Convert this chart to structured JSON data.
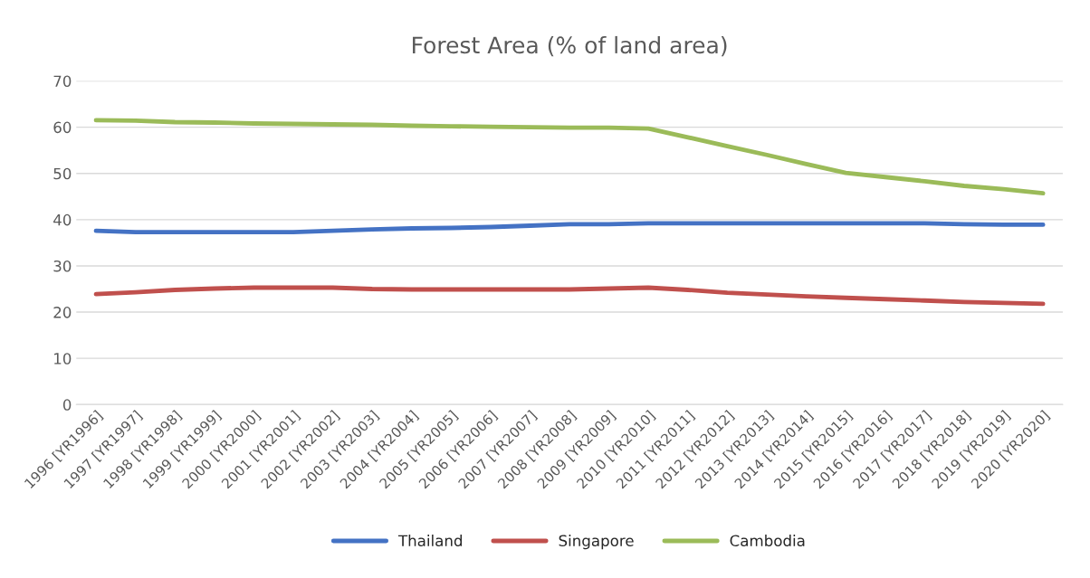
{
  "chart_data": {
    "type": "line",
    "title": "Forest Area (% of land area)",
    "categories": [
      "1996 [YR1996]",
      "1997 [YR1997]",
      "1998 [YR1998]",
      "1999 [YR1999]",
      "2000 [YR2000]",
      "2001 [YR2001]",
      "2002 [YR2002]",
      "2003 [YR2003]",
      "2004 [YR2004]",
      "2005 [YR2005]",
      "2006 [YR2006]",
      "2007 [YR2007]",
      "2008 [YR2008]",
      "2009 [YR2009]",
      "2010 [YR2010]",
      "2011 [YR2011]",
      "2012 [YR2012]",
      "2013 [YR2013]",
      "2014 [YR2014]",
      "2015 [YR2015]",
      "2016 [YR2016]",
      "2017 [YR2017]",
      "2018 [YR2018]",
      "2019 [YR2019]",
      "2020 [YR2020]"
    ],
    "series": [
      {
        "name": "Thailand",
        "color": "#4472c4",
        "values": [
          37.6,
          37.3,
          37.3,
          37.3,
          37.3,
          37.3,
          37.6,
          37.9,
          38.1,
          38.2,
          38.4,
          38.7,
          39.0,
          39.0,
          39.2,
          39.2,
          39.2,
          39.2,
          39.2,
          39.2,
          39.2,
          39.2,
          39.0,
          38.9,
          38.9
        ]
      },
      {
        "name": "Singapore",
        "color": "#c0504d",
        "values": [
          23.9,
          24.3,
          24.8,
          25.1,
          25.3,
          25.3,
          25.3,
          25.0,
          24.9,
          24.9,
          24.9,
          24.9,
          24.9,
          25.1,
          25.3,
          24.8,
          24.2,
          23.8,
          23.4,
          23.1,
          22.8,
          22.5,
          22.2,
          22.0,
          21.8
        ]
      },
      {
        "name": "Cambodia",
        "color": "#9bbb59",
        "values": [
          61.5,
          61.4,
          61.1,
          61.0,
          60.8,
          60.7,
          60.6,
          60.5,
          60.3,
          60.2,
          60.1,
          60.0,
          59.9,
          59.9,
          59.7,
          57.8,
          55.9,
          54.0,
          52.0,
          50.1,
          49.2,
          48.3,
          47.3,
          46.6,
          45.7
        ]
      }
    ],
    "ylim": [
      0,
      70
    ],
    "yticks": [
      0,
      10,
      20,
      30,
      40,
      50,
      60,
      70
    ],
    "grid": "y",
    "legend": "bottom",
    "marker": "none",
    "line_style": "solid"
  }
}
